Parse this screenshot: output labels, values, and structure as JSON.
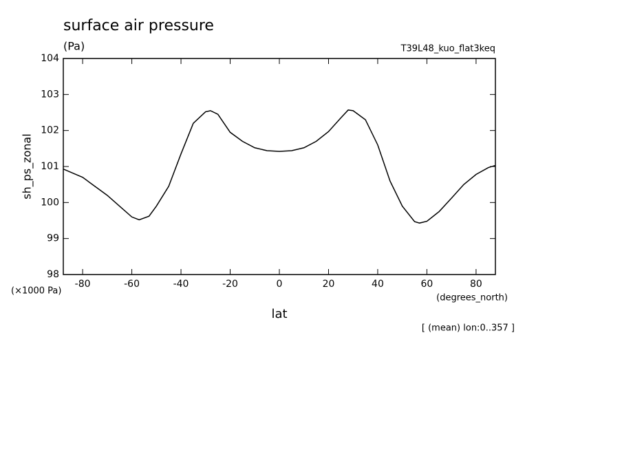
{
  "chart_data": {
    "type": "line",
    "title": "surface air pressure",
    "units": "(Pa)",
    "run_label": "T39L48_kuo_flat3keq",
    "y_label": "sh_ps_zonal",
    "y_scale_note": "(×1000 Pa)",
    "x_units": "(degrees_north)",
    "x_label": "lat",
    "note": "[ (mean) lon:0..357 ]",
    "x": [
      -87.86,
      -80,
      -70,
      -65,
      -60,
      -57,
      -53,
      -50,
      -45,
      -40,
      -35,
      -30,
      -28,
      -25,
      -20,
      -15,
      -10,
      -5,
      0,
      5,
      10,
      15,
      20,
      25,
      28,
      30,
      35,
      40,
      45,
      50,
      55,
      57,
      60,
      65,
      70,
      75,
      80,
      85,
      87.86
    ],
    "series": [
      {
        "color": "#000000",
        "values": [
          100.93,
          100.7,
          100.2,
          99.9,
          99.6,
          99.52,
          99.62,
          99.9,
          100.45,
          101.35,
          102.2,
          102.52,
          102.55,
          102.45,
          101.95,
          101.7,
          101.52,
          101.44,
          101.42,
          101.44,
          101.52,
          101.7,
          101.97,
          102.35,
          102.57,
          102.55,
          102.3,
          101.6,
          100.6,
          99.9,
          99.47,
          99.43,
          99.48,
          99.75,
          100.12,
          100.5,
          100.78,
          100.97,
          101.03
        ]
      }
    ],
    "xlim": [
      -87.86,
      87.86
    ],
    "xticks": [
      -80,
      -60,
      -40,
      -20,
      0,
      20,
      40,
      60,
      80
    ],
    "ylim": [
      98,
      104
    ],
    "yticks": [
      98,
      99,
      100,
      101,
      102,
      103,
      104
    ]
  }
}
